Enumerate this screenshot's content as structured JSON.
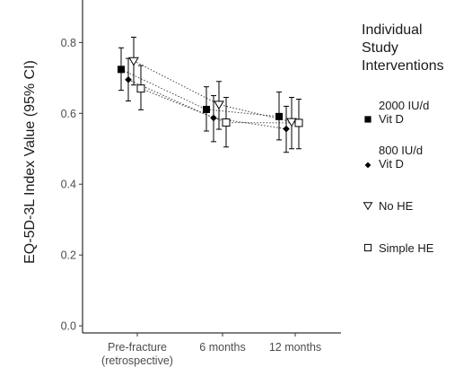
{
  "chart_data": {
    "type": "scatter",
    "ylabel": "EQ-5D-3L Index Value (95% CI)",
    "xlabel": "",
    "categories": [
      [
        "Pre-fracture",
        "(retrospective)"
      ],
      [
        "6 months"
      ],
      [
        "12 months"
      ]
    ],
    "ylim": [
      -0.02,
      0.92
    ],
    "yticks": [
      "0.0",
      "0.2",
      "0.4",
      "0.6",
      "0.8"
    ],
    "ytick_values": [
      0.0,
      0.2,
      0.4,
      0.6,
      0.8
    ],
    "grid": false,
    "legend_title": [
      "Individual",
      "Study",
      "Interventions"
    ],
    "legend_position": "right",
    "series": [
      {
        "name": [
          "2000 IU/d",
          "Vit D"
        ],
        "marker": "filled-square",
        "values": [
          0.724,
          0.611,
          0.591
        ],
        "ci_low": [
          0.665,
          0.55,
          0.525
        ],
        "ci_high": [
          0.785,
          0.675,
          0.66
        ]
      },
      {
        "name": [
          "800 IU/d",
          "Vit D"
        ],
        "marker": "filled-diamond",
        "values": [
          0.695,
          0.587,
          0.556
        ],
        "ci_low": [
          0.635,
          0.52,
          0.49
        ],
        "ci_high": [
          0.755,
          0.65,
          0.62
        ]
      },
      {
        "name": [
          "No HE"
        ],
        "marker": "open-triangle-down",
        "values": [
          0.748,
          0.625,
          0.576
        ],
        "ci_low": [
          0.68,
          0.555,
          0.5
        ],
        "ci_high": [
          0.815,
          0.69,
          0.645
        ]
      },
      {
        "name": [
          "Simple HE"
        ],
        "marker": "open-square",
        "values": [
          0.67,
          0.574,
          0.573
        ],
        "ci_low": [
          0.61,
          0.505,
          0.5
        ],
        "ci_high": [
          0.735,
          0.645,
          0.64
        ]
      }
    ]
  }
}
